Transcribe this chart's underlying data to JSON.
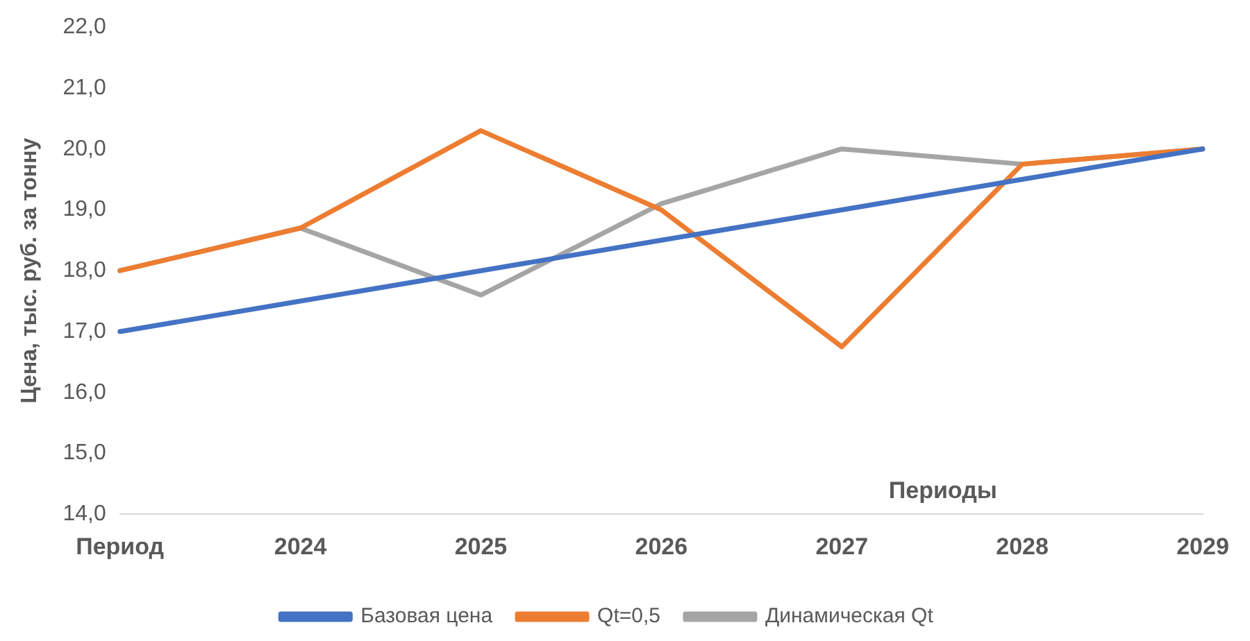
{
  "chart_data": {
    "type": "line",
    "ylabel": "Цена, тыс. руб. за тонну",
    "xlabel": "Периоды",
    "categories": [
      "Период",
      "2024",
      "2025",
      "2026",
      "2027",
      "2028",
      "2029"
    ],
    "series": [
      {
        "name": "Базовая цена",
        "color": "#4472c4",
        "values": [
          17.0,
          17.5,
          18.0,
          18.5,
          19.0,
          19.5,
          20.0
        ]
      },
      {
        "name": "Qt=0,5",
        "color": "#ed7d31",
        "values": [
          18.0,
          18.7,
          20.3,
          19.0,
          16.75,
          19.75,
          20.0
        ]
      },
      {
        "name": "Динамическая Qt",
        "color": "#a5a5a5",
        "values": [
          18.0,
          18.7,
          17.6,
          19.1,
          20.0,
          19.75,
          20.0
        ]
      }
    ],
    "ylim": [
      14,
      22
    ],
    "yticks": [
      {
        "value": 14,
        "label": "14,0"
      },
      {
        "value": 15,
        "label": "15,0"
      },
      {
        "value": 16,
        "label": "16,0"
      },
      {
        "value": 17,
        "label": "17,0"
      },
      {
        "value": 18,
        "label": "18,0"
      },
      {
        "value": 19,
        "label": "19,0"
      },
      {
        "value": 20,
        "label": "20,0"
      },
      {
        "value": 21,
        "label": "21,0"
      },
      {
        "value": 22,
        "label": "22,0"
      }
    ],
    "grid": false,
    "legend": "bottom",
    "marker": "none",
    "line_style": "solid"
  }
}
